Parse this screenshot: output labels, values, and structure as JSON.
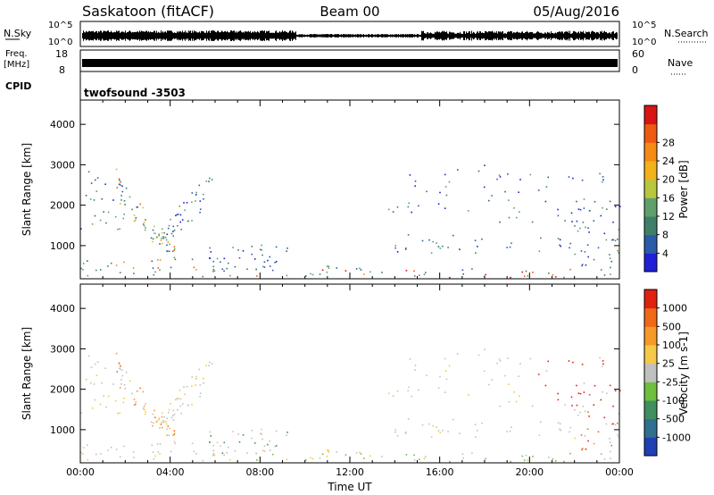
{
  "header": {
    "station": "Saskatoon (fitACF)",
    "beam": "Beam 00",
    "date": "05/Aug/2016"
  },
  "strip_labels": {
    "nsky": "N.Sky",
    "nsearch": "N.Search",
    "freq": "Freq.",
    "freq_unit": "[MHz]",
    "nave": "Nave",
    "cpid": "CPID",
    "cpid_value": "twofsound -3503",
    "noise_ticks": [
      "10^5",
      "10^0"
    ],
    "freq_ticks": [
      "18",
      "8"
    ],
    "nave_ticks": [
      "60",
      "0"
    ]
  },
  "chart_data": [
    {
      "type": "heatmap",
      "name": "power",
      "ylabel": "Slant Range [km]",
      "xlabel": "",
      "xlim": [
        0,
        24
      ],
      "ylim": [
        180,
        4600
      ],
      "x_ticks": [],
      "y_ticks": [
        "1000",
        "2000",
        "3000",
        "4000"
      ],
      "colorbar": {
        "label": "Power [dB]",
        "ticks": [
          "4",
          "8",
          "12",
          "16",
          "20",
          "24",
          "28"
        ],
        "colors": [
          "#1f1fd8",
          "#2a5ba8",
          "#3f7f6a",
          "#5fa06a",
          "#b9c63e",
          "#f2b21a",
          "#f58a14",
          "#ee5a12",
          "#d91414"
        ]
      }
    },
    {
      "type": "heatmap",
      "name": "velocity",
      "ylabel": "Slant Range [km]",
      "xlabel": "Time UT",
      "xlim": [
        0,
        24
      ],
      "ylim": [
        180,
        4600
      ],
      "x_ticks": [
        "00:00",
        "04:00",
        "08:00",
        "12:00",
        "16:00",
        "20:00",
        "00:00"
      ],
      "y_ticks": [
        "1000",
        "2000",
        "3000",
        "4000"
      ],
      "colorbar": {
        "label": "Velocity [m s-1]",
        "ticks": [
          "1000",
          "500",
          "100",
          "25",
          "-25",
          "-100",
          "-500",
          "-1000"
        ],
        "colors": [
          "#1f3fb5",
          "#2f6f8f",
          "#3f8f5f",
          "#6fbf3f",
          "#c0c0c0",
          "#f5c84a",
          "#f59a28",
          "#f06818",
          "#e02010"
        ]
      }
    }
  ]
}
